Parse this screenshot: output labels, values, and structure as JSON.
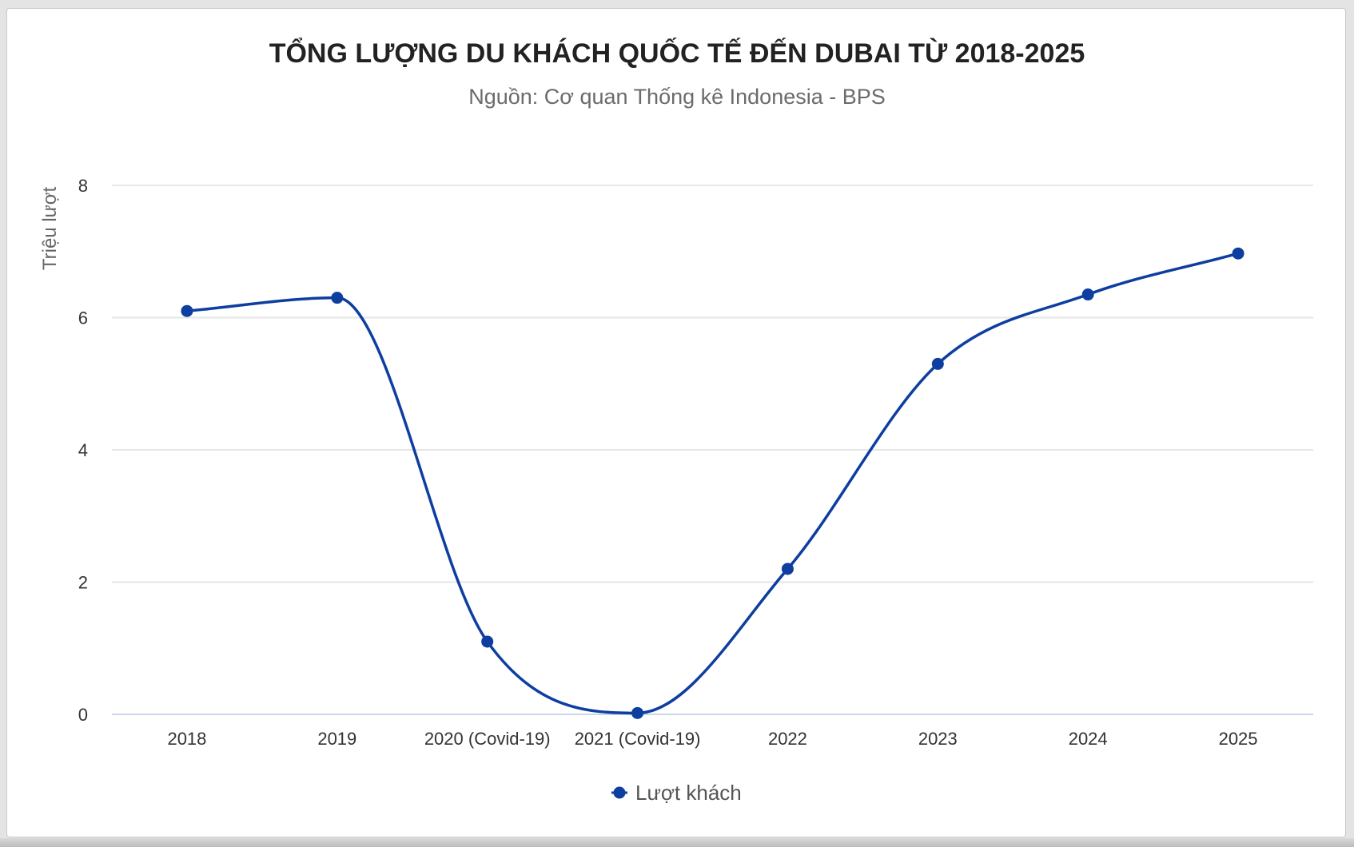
{
  "chart_data": {
    "type": "line",
    "title": "TỔNG LƯỢNG DU KHÁCH QUỐC TẾ ĐẾN DUBAI TỪ 2018-2025",
    "subtitle": "Nguồn: Cơ quan Thống kê Indonesia - BPS",
    "xlabel": "",
    "ylabel": "Triệu lượt",
    "categories": [
      "2018",
      "2019",
      "2020 (Covid-19)",
      "2021 (Covid-19)",
      "2022",
      "2023",
      "2024",
      "2025"
    ],
    "yticks": [
      "0",
      "2",
      "4",
      "6",
      "8"
    ],
    "ylim": [
      0,
      8
    ],
    "grid": true,
    "legend_position": "bottom-center",
    "series": [
      {
        "name": "Lượt khách",
        "color": "#0d3ea0",
        "values": [
          6.1,
          6.3,
          1.1,
          0.02,
          2.2,
          5.3,
          6.35,
          6.97
        ]
      }
    ]
  }
}
